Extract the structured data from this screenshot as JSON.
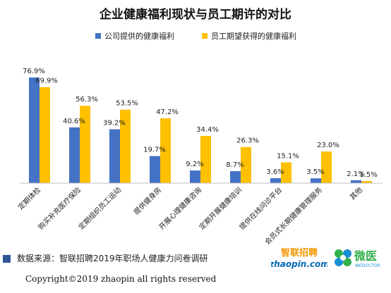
{
  "colors": {
    "company": "#4472c4",
    "employee": "#ffc000",
    "title": "#111111",
    "axis": "#bfbfbf",
    "zhaopin_orange": "#f39800",
    "zhaopin_blue": "#0068b7",
    "weiyi_green": "#34b04a",
    "weiyi_blue": "#1b8fd6"
  },
  "chart_data": {
    "type": "bar",
    "title": "企业健康福利现状与员工期许的对比",
    "xlabel": "",
    "ylabel": "",
    "ylim": [
      0,
      100
    ],
    "legend_position": "top",
    "grid": false,
    "categories": [
      "定期体检",
      "购买补充医疗保险",
      "定期组织员工运动",
      "提供健身房",
      "开展心理健康咨询",
      "定期开展健康培训",
      "提供在线问诊平台",
      "会员式长期健康管理服务",
      "其他"
    ],
    "series": [
      {
        "name": "公司提供的健康福利",
        "values": [
          76.9,
          40.6,
          39.2,
          19.7,
          9.2,
          8.7,
          3.6,
          3.5,
          2.1
        ],
        "labels": [
          "76.9%",
          "40.6%",
          "39.2%",
          "19.7%",
          "9.2%",
          "8.7%",
          "3.6%",
          "3.5%",
          "2.1%"
        ]
      },
      {
        "name": "员工期望获得的健康福利",
        "values": [
          69.9,
          56.3,
          53.5,
          47.2,
          34.4,
          26.3,
          15.1,
          23.0,
          1.5
        ],
        "labels": [
          "69.9%",
          "56.3%",
          "53.5%",
          "47.2%",
          "34.4%",
          "26.3%",
          "15.1%",
          "23.0%",
          "1.5%"
        ]
      }
    ]
  },
  "footer": {
    "source": "数据来源：智联招聘2019年职场人健康力问卷调研",
    "copyright": "Copyright©2019 zhaopin all rights reserved"
  },
  "logos": {
    "zhaopin_cn": "智联招聘",
    "zhaopin_en": "zhaopin.com",
    "weiyi_cn": "微医",
    "weiyi_en": "WEDOCTOR"
  }
}
